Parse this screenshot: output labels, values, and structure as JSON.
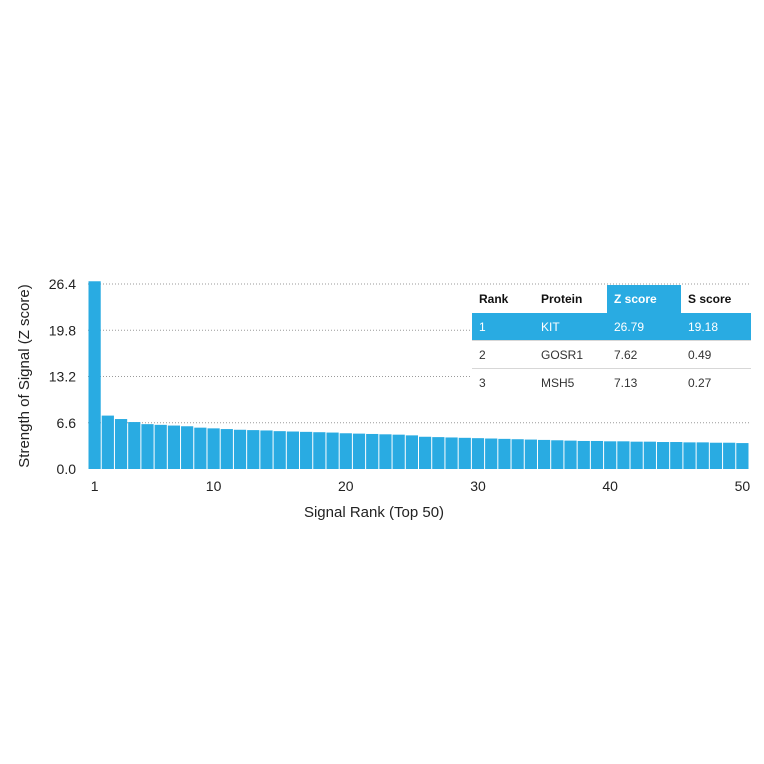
{
  "chart_data": {
    "type": "bar",
    "xlabel": "Signal Rank (Top 50)",
    "ylabel": "Strength of Signal (Z score)",
    "ylim": [
      0,
      26.4
    ],
    "yticks": [
      "0.0",
      "6.6",
      "13.2",
      "19.8",
      "26.4"
    ],
    "xticks": [
      "1",
      "10",
      "20",
      "30",
      "40",
      "50"
    ],
    "grid": "horizontal dotted",
    "bar_color": "#29abe2",
    "x": [
      1,
      2,
      3,
      4,
      5,
      6,
      7,
      8,
      9,
      10,
      11,
      12,
      13,
      14,
      15,
      16,
      17,
      18,
      19,
      20,
      21,
      22,
      23,
      24,
      25,
      26,
      27,
      28,
      29,
      30,
      31,
      32,
      33,
      34,
      35,
      36,
      37,
      38,
      39,
      40,
      41,
      42,
      43,
      44,
      45,
      46,
      47,
      48,
      49,
      50
    ],
    "values": [
      26.79,
      7.62,
      7.13,
      6.7,
      6.4,
      6.3,
      6.2,
      6.1,
      5.9,
      5.8,
      5.7,
      5.6,
      5.55,
      5.5,
      5.4,
      5.35,
      5.3,
      5.25,
      5.2,
      5.1,
      5.05,
      5.0,
      4.95,
      4.9,
      4.8,
      4.6,
      4.55,
      4.5,
      4.45,
      4.4,
      4.35,
      4.3,
      4.25,
      4.2,
      4.15,
      4.1,
      4.05,
      4.0,
      4.0,
      3.95,
      3.95,
      3.9,
      3.9,
      3.85,
      3.85,
      3.8,
      3.8,
      3.75,
      3.75,
      3.7
    ]
  },
  "table": {
    "headers": [
      "Rank",
      "Protein",
      "Z score",
      "S score"
    ],
    "rows": [
      [
        "1",
        "KIT",
        "26.79",
        "19.18"
      ],
      [
        "2",
        "GOSR1",
        "7.62",
        "0.49"
      ],
      [
        "3",
        "MSH5",
        "7.13",
        "0.27"
      ]
    ],
    "highlight_color": "#29abe2"
  }
}
